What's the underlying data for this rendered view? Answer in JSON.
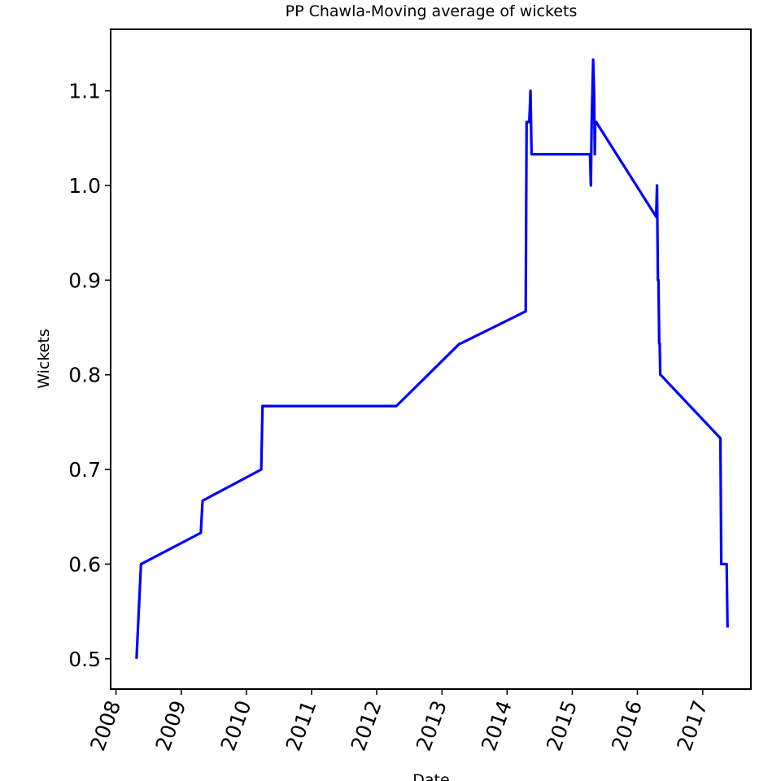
{
  "chart_data": {
    "type": "line",
    "title": "PP Chawla-Moving average of wickets",
    "xlabel": "Date",
    "ylabel": "Wickets",
    "x_ticks": [
      "2008",
      "2009",
      "2010",
      "2011",
      "2012",
      "2013",
      "2014",
      "2015",
      "2016",
      "2017"
    ],
    "y_ticks": [
      "0.5",
      "0.6",
      "0.7",
      "0.8",
      "0.9",
      "1.0",
      "1.1"
    ],
    "xlim": [
      "2007-12-02",
      "2017-09-28"
    ],
    "ylim": [
      0.468,
      1.165
    ],
    "grid": false,
    "legend": "none",
    "line_color": "#0000ff",
    "series": [
      {
        "x": [
          "2008-04-25",
          "2008-05-20",
          "2009-04-20",
          "2009-04-30",
          "2010-03-25",
          "2010-04-01",
          "2012-04-20",
          "2013-04-10",
          "2013-04-15",
          "2014-04-15",
          "2014-04-20",
          "2014-05-05",
          "2014-05-12",
          "2014-05-18",
          "2014-05-20",
          "2015-04-10",
          "2015-04-15",
          "2015-04-20",
          "2015-04-28",
          "2015-05-03",
          "2015-05-07",
          "2015-05-10",
          "2015-05-15",
          "2016-04-15",
          "2016-04-20",
          "2016-04-25",
          "2016-04-28",
          "2016-05-02",
          "2016-05-05",
          "2016-05-08",
          "2016-05-10",
          "2017-04-10",
          "2017-04-15",
          "2017-04-20",
          "2017-05-15",
          "2017-05-20"
        ],
        "y": [
          0.5,
          0.6,
          0.633,
          0.667,
          0.7,
          0.767,
          0.767,
          0.833,
          0.833,
          0.867,
          1.067,
          1.067,
          1.1,
          1.033,
          1.033,
          1.033,
          1.0,
          1.067,
          1.133,
          1.1,
          1.033,
          1.067,
          1.067,
          0.967,
          1.0,
          0.9,
          0.9,
          0.833,
          0.833,
          0.8,
          0.8,
          0.733,
          0.6,
          0.6,
          0.6,
          0.533
        ]
      }
    ]
  }
}
